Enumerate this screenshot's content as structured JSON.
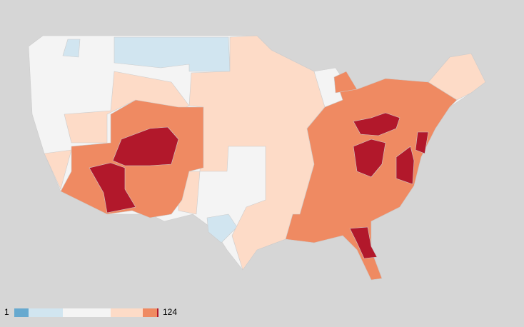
{
  "legend": {
    "min_label": "1",
    "max_label": "124"
  }
}
